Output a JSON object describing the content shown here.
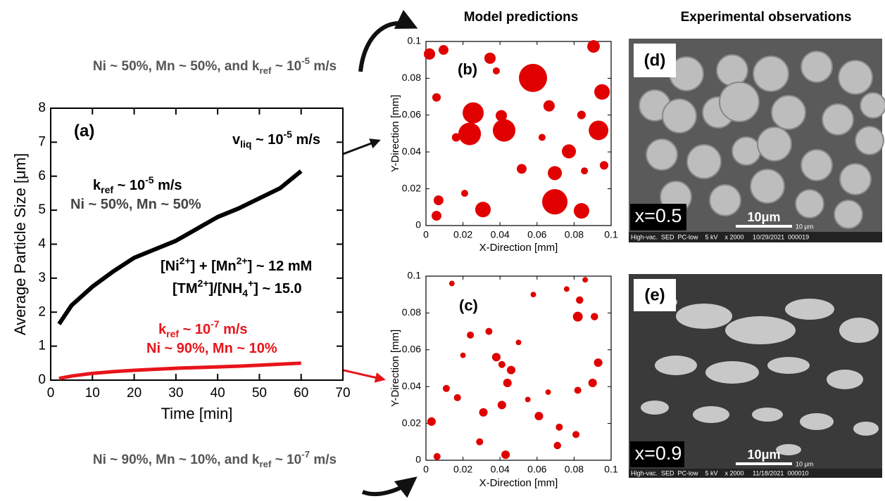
{
  "headers": {
    "model": "Model predictions",
    "experimental": "Experimental observations"
  },
  "captions": [
    {
      "segments": [
        {
          "t": "Ni ~ 50%, Mn ~ 50%, and k"
        },
        {
          "sub": "ref"
        },
        {
          "t": " ~ 10"
        },
        {
          "sup": "-5"
        },
        {
          "t": " m/s"
        }
      ]
    },
    {
      "segments": [
        {
          "t": "Ni ~ 90%, Mn ~ 10%, and k"
        },
        {
          "sub": "ref"
        },
        {
          "t": " ~ 10"
        },
        {
          "sup": "-7"
        },
        {
          "t": " m/s"
        }
      ]
    }
  ],
  "chart_data": [
    {
      "type": "line",
      "xlabel": "Time [min]",
      "ylabel": "Average Particle Size [μm]",
      "xlim": [
        0,
        70
      ],
      "ylim": [
        0,
        8
      ],
      "xticks": [
        0,
        10,
        20,
        30,
        40,
        50,
        60,
        70
      ],
      "yticks": [
        0,
        1,
        2,
        3,
        4,
        5,
        6,
        7,
        8
      ],
      "x": [
        2,
        5,
        10,
        15,
        20,
        25,
        30,
        35,
        40,
        45,
        50,
        55,
        60
      ],
      "series": [
        {
          "color": "#000000",
          "values": [
            1.65,
            2.2,
            2.75,
            3.2,
            3.6,
            3.85,
            4.1,
            4.45,
            4.8,
            5.05,
            5.35,
            5.65,
            6.15
          ]
        },
        {
          "color": "#e8141b",
          "values": [
            0.05,
            0.12,
            0.2,
            0.25,
            0.29,
            0.32,
            0.35,
            0.37,
            0.39,
            0.41,
            0.44,
            0.47,
            0.5
          ]
        }
      ],
      "annotations": [
        {
          "color": "#000000",
          "segments": [
            {
              "t": "(a)"
            }
          ]
        },
        {
          "color": "#000000",
          "segments": [
            {
              "t": "v"
            },
            {
              "sub": "liq"
            },
            {
              "t": " ~ 10"
            },
            {
              "sup": "-5"
            },
            {
              "t": " m/s"
            }
          ]
        },
        {
          "color": "#000000",
          "segments": [
            {
              "t": "k"
            },
            {
              "sub": "ref"
            },
            {
              "t": " ~ 10"
            },
            {
              "sup": "-5"
            },
            {
              "t": " m/s"
            }
          ]
        },
        {
          "color": "#444444",
          "segments": [
            {
              "t": "Ni ~ 50%, Mn ~ 50%"
            }
          ]
        },
        {
          "color": "#000000",
          "segments": [
            {
              "t": "[Ni"
            },
            {
              "sup": "2+"
            },
            {
              "t": "] + [Mn"
            },
            {
              "sup": "2+"
            },
            {
              "t": "] ~ 12 mM"
            }
          ]
        },
        {
          "color": "#000000",
          "segments": [
            {
              "t": "[TM"
            },
            {
              "sup": "2+"
            },
            {
              "t": "]/[NH"
            },
            {
              "sub": "4"
            },
            {
              "sup": "+"
            },
            {
              "t": "] ~ 15.0"
            }
          ]
        },
        {
          "color": "#e8141b",
          "segments": [
            {
              "t": "k"
            },
            {
              "sub": "ref"
            },
            {
              "t": " ~ 10"
            },
            {
              "sup": "-7"
            },
            {
              "t": " m/s"
            }
          ]
        },
        {
          "color": "#e8141b",
          "segments": [
            {
              "t": "Ni ~ 90%, Mn ~ 10%"
            }
          ]
        }
      ]
    },
    {
      "type": "scatter",
      "panel": "(b)",
      "xlabel": "X-Direction [mm]",
      "ylabel": "Y-Direction [mm]",
      "color": "#e00000",
      "xlim": [
        0,
        0.1
      ],
      "ylim": [
        0,
        0.1
      ],
      "xticks": [
        0,
        0.02,
        0.04,
        0.06,
        0.08,
        0.1
      ],
      "yticks": [
        0,
        0.02,
        0.04,
        0.06,
        0.08,
        0.1
      ],
      "x": [
        0.0578,
        0.0255,
        0.0236,
        0.0422,
        0.0932,
        0.0696,
        0.0308,
        0.0951,
        0.084,
        0.0019,
        0.0095,
        0.0346,
        0.0905,
        0.0772,
        0.0696,
        0.0407,
        0.0057,
        0.0068,
        0.0665,
        0.0163,
        0.0517,
        0.0057,
        0.0209,
        0.0962,
        0.084,
        0.0627,
        0.0856,
        0.038
      ],
      "y": [
        0.0802,
        0.0612,
        0.0498,
        0.0517,
        0.0517,
        0.0129,
        0.0087,
        0.0726,
        0.008,
        0.0932,
        0.0954,
        0.0909,
        0.0973,
        0.0403,
        0.0285,
        0.0597,
        0.0696,
        0.0137,
        0.065,
        0.0479,
        0.0308,
        0.0053,
        0.0175,
        0.0327,
        0.0601,
        0.0479,
        0.0297,
        0.084
      ],
      "sizes": [
        0.0152,
        0.0114,
        0.0122,
        0.0122,
        0.0106,
        0.0137,
        0.0084,
        0.0084,
        0.0084,
        0.0061,
        0.0053,
        0.0061,
        0.0068,
        0.0076,
        0.0076,
        0.0061,
        0.0046,
        0.0053,
        0.0061,
        0.0046,
        0.0053,
        0.0053,
        0.0038,
        0.0046,
        0.0046,
        0.0038,
        0.0038,
        0.0038
      ]
    },
    {
      "type": "scatter",
      "panel": "(c)",
      "xlabel": "X-Direction [mm]",
      "ylabel": "Y-Direction [mm]",
      "color": "#e00000",
      "xlim": [
        0,
        0.1
      ],
      "ylim": [
        0,
        0.1
      ],
      "xticks": [
        0,
        0.02,
        0.04,
        0.06,
        0.08,
        0.1
      ],
      "yticks": [
        0,
        0.02,
        0.04,
        0.06,
        0.08,
        0.1
      ],
      "x": [
        0.082,
        0.038,
        0.041,
        0.046,
        0.083,
        0.034,
        0.044,
        0.041,
        0.031,
        0.024,
        0.011,
        0.003,
        0.017,
        0.029,
        0.043,
        0.061,
        0.072,
        0.082,
        0.09,
        0.093,
        0.076,
        0.058,
        0.05,
        0.066,
        0.081,
        0.071,
        0.006,
        0.091,
        0.014,
        0.055,
        0.086,
        0.02
      ],
      "y": [
        0.078,
        0.056,
        0.052,
        0.049,
        0.087,
        0.07,
        0.042,
        0.03,
        0.026,
        0.068,
        0.039,
        0.021,
        0.034,
        0.01,
        0.003,
        0.024,
        0.018,
        0.038,
        0.042,
        0.053,
        0.093,
        0.09,
        0.064,
        0.037,
        0.014,
        0.008,
        0.002,
        0.078,
        0.096,
        0.033,
        0.098,
        0.057
      ],
      "sizes": [
        0.0053,
        0.0046,
        0.0038,
        0.0046,
        0.004,
        0.0038,
        0.0046,
        0.0046,
        0.0046,
        0.0038,
        0.0038,
        0.0046,
        0.0038,
        0.0038,
        0.0046,
        0.0046,
        0.0038,
        0.0038,
        0.0046,
        0.0046,
        0.003,
        0.003,
        0.003,
        0.003,
        0.0038,
        0.004,
        0.0038,
        0.004,
        0.003,
        0.003,
        0.003,
        0.003
      ]
    }
  ],
  "images": [
    {
      "label": "(d)",
      "composition": "x=0.5",
      "scale": "10μm",
      "scale_small": "10 μm",
      "footer": "High-vac.  SED  PC-low    5 kV    x 2000     10/29/2021  000019"
    },
    {
      "label": "(e)",
      "composition": "x=0.9",
      "scale": "10μm",
      "scale_small": "10 μm",
      "footer": "High-vac.  SED  PC-low    5 kV    x 2000     11/18/2021  000010"
    }
  ]
}
